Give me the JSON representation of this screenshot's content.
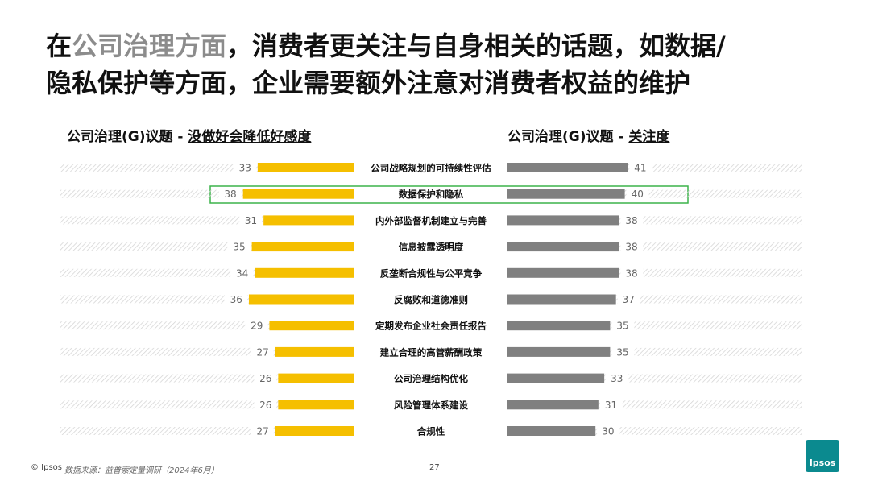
{
  "title_parts": [
    "在",
    "公司治理方面",
    "，消费者更关注与自身相关的话题，如数据/",
    "隐私保护等方面，企业需要额外注意对消费者权益的维护"
  ],
  "chart_data": {
    "type": "butterfly",
    "categories": [
      "公司战略规划的可持续性评估",
      "数据保护和隐私",
      "内外部监督机制建立与完善",
      "信息披露透明度",
      "反垄断合规性与公平竞争",
      "反腐败和道德准则",
      "定期发布企业社会责任报告",
      "建立合理的高管薪酬政策",
      "公司治理结构优化",
      "风险管理体系建设",
      "合规性"
    ],
    "series": [
      {
        "title": "公司治理(G)议题 - ",
        "name": "没做好会降低好感度",
        "color": "#f5bf00",
        "values": [
          33,
          38,
          31,
          35,
          34,
          36,
          29,
          27,
          26,
          26,
          27
        ]
      },
      {
        "title": "公司治理(G)议题 - ",
        "name": "关注度",
        "color": "#808080",
        "values": [
          41,
          40,
          38,
          38,
          38,
          37,
          35,
          35,
          33,
          31,
          30
        ]
      }
    ]
  },
  "footer": {
    "copyright": "© Ipsos",
    "source": "数据来源：益普索定量调研（2024年6月）",
    "page": "27",
    "logo": "Ipsos"
  }
}
